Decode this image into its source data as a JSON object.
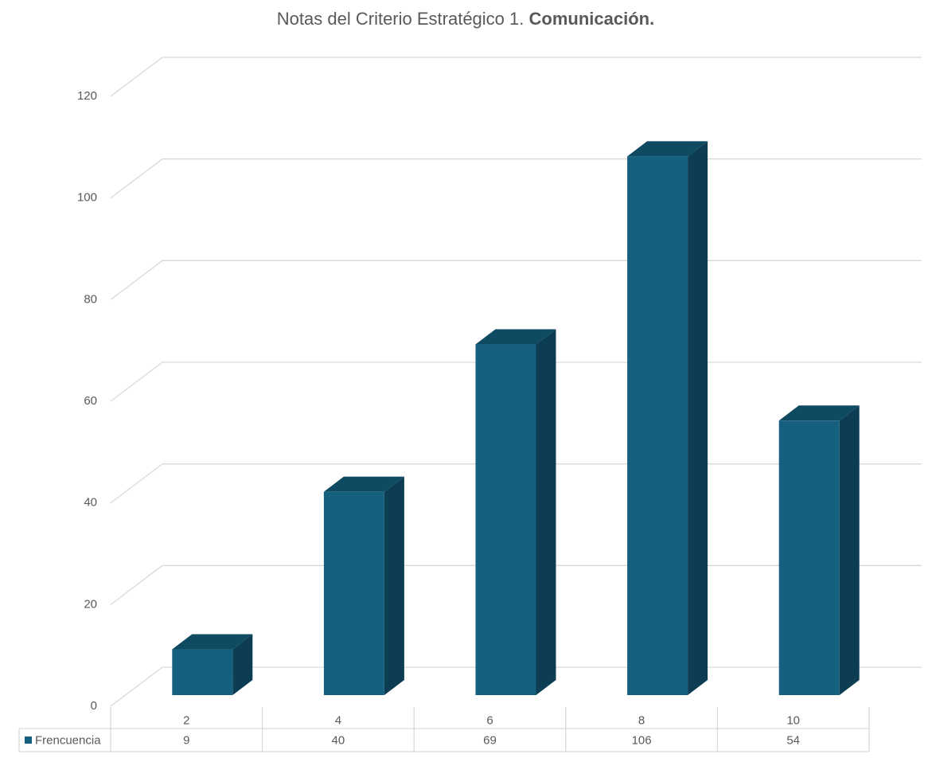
{
  "chart_data": {
    "type": "bar3d",
    "title": [
      "Notas del Criterio Estratégico 1.",
      "Comunicación."
    ],
    "categories": [
      "2",
      "4",
      "6",
      "8",
      "10"
    ],
    "series": [
      {
        "name": "Frencuencia",
        "color": "#15607f",
        "values": [
          9,
          40,
          69,
          106,
          54
        ]
      }
    ],
    "ylim": [
      0,
      120
    ],
    "yticks": [
      0,
      20,
      40,
      60,
      80,
      100,
      120
    ],
    "grid": true,
    "data_table": true
  }
}
